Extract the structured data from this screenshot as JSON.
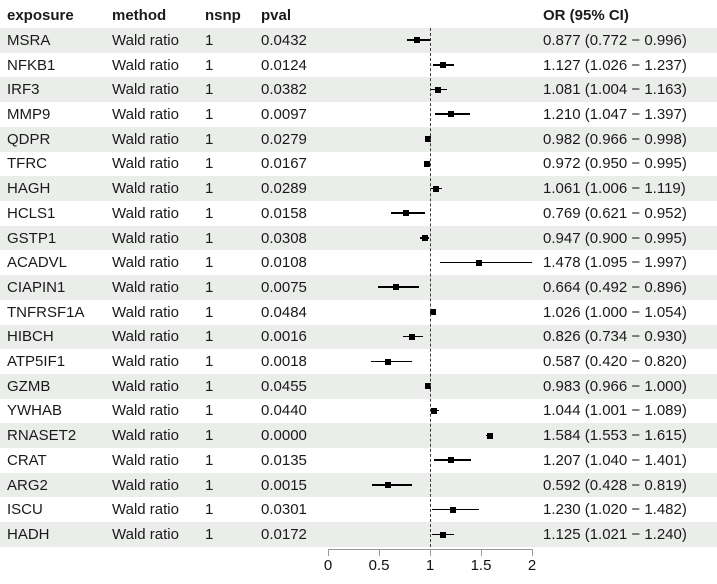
{
  "columns": {
    "exposure": "exposure",
    "method": "method",
    "nsnp": "nsnp",
    "pval": "pval",
    "or_ci": "OR (95% CI)"
  },
  "colors": {
    "stripe": "#ebedeb",
    "text": "#1a1a1a",
    "marker": "#000000",
    "axis": "#9a9a9a",
    "reference_line": "#3c3c3c"
  },
  "chart_data": {
    "type": "scatter",
    "subtype": "forest-plot",
    "title": "",
    "xlabel": "",
    "x_range": [
      0,
      2
    ],
    "x_ticks": [
      0,
      0.5,
      1,
      1.5,
      2
    ],
    "reference_line_x": 1,
    "grid": false,
    "rows": [
      {
        "exposure": "MSRA",
        "method": "Wald ratio",
        "nsnp": "1",
        "pval": "0.0432",
        "or": 0.877,
        "ci_low": 0.772,
        "ci_high": 0.996,
        "or_label": "0.877 (0.772 − 0.996)"
      },
      {
        "exposure": "NFKB1",
        "method": "Wald ratio",
        "nsnp": "1",
        "pval": "0.0124",
        "or": 1.127,
        "ci_low": 1.026,
        "ci_high": 1.237,
        "or_label": "1.127 (1.026 − 1.237)"
      },
      {
        "exposure": "IRF3",
        "method": "Wald ratio",
        "nsnp": "1",
        "pval": "0.0382",
        "or": 1.081,
        "ci_low": 1.004,
        "ci_high": 1.163,
        "or_label": "1.081 (1.004 − 1.163)"
      },
      {
        "exposure": "MMP9",
        "method": "Wald ratio",
        "nsnp": "1",
        "pval": "0.0097",
        "or": 1.21,
        "ci_low": 1.047,
        "ci_high": 1.397,
        "or_label": "1.210 (1.047 − 1.397)"
      },
      {
        "exposure": "QDPR",
        "method": "Wald ratio",
        "nsnp": "1",
        "pval": "0.0279",
        "or": 0.982,
        "ci_low": 0.966,
        "ci_high": 0.998,
        "or_label": "0.982 (0.966 − 0.998)"
      },
      {
        "exposure": "TFRC",
        "method": "Wald ratio",
        "nsnp": "1",
        "pval": "0.0167",
        "or": 0.972,
        "ci_low": 0.95,
        "ci_high": 0.995,
        "or_label": "0.972 (0.950 − 0.995)"
      },
      {
        "exposure": "HAGH",
        "method": "Wald ratio",
        "nsnp": "1",
        "pval": "0.0289",
        "or": 1.061,
        "ci_low": 1.006,
        "ci_high": 1.119,
        "or_label": "1.061 (1.006 − 1.119)"
      },
      {
        "exposure": "HCLS1",
        "method": "Wald ratio",
        "nsnp": "1",
        "pval": "0.0158",
        "or": 0.769,
        "ci_low": 0.621,
        "ci_high": 0.952,
        "or_label": "0.769 (0.621 − 0.952)"
      },
      {
        "exposure": "GSTP1",
        "method": "Wald ratio",
        "nsnp": "1",
        "pval": "0.0308",
        "or": 0.947,
        "ci_low": 0.9,
        "ci_high": 0.995,
        "or_label": "0.947 (0.900 − 0.995)"
      },
      {
        "exposure": "ACADVL",
        "method": "Wald ratio",
        "nsnp": "1",
        "pval": "0.0108",
        "or": 1.478,
        "ci_low": 1.095,
        "ci_high": 1.997,
        "or_label": "1.478 (1.095 − 1.997)"
      },
      {
        "exposure": "CIAPIN1",
        "method": "Wald ratio",
        "nsnp": "1",
        "pval": "0.0075",
        "or": 0.664,
        "ci_low": 0.492,
        "ci_high": 0.896,
        "or_label": "0.664 (0.492 − 0.896)"
      },
      {
        "exposure": "TNFRSF1A",
        "method": "Wald ratio",
        "nsnp": "1",
        "pval": "0.0484",
        "or": 1.026,
        "ci_low": 1.0,
        "ci_high": 1.054,
        "or_label": "1.026 (1.000 − 1.054)"
      },
      {
        "exposure": "HIBCH",
        "method": "Wald ratio",
        "nsnp": "1",
        "pval": "0.0016",
        "or": 0.826,
        "ci_low": 0.734,
        "ci_high": 0.93,
        "or_label": "0.826 (0.734 − 0.930)"
      },
      {
        "exposure": "ATP5IF1",
        "method": "Wald ratio",
        "nsnp": "1",
        "pval": "0.0018",
        "or": 0.587,
        "ci_low": 0.42,
        "ci_high": 0.82,
        "or_label": "0.587 (0.420 − 0.820)"
      },
      {
        "exposure": "GZMB",
        "method": "Wald ratio",
        "nsnp": "1",
        "pval": "0.0455",
        "or": 0.983,
        "ci_low": 0.966,
        "ci_high": 1.0,
        "or_label": "0.983 (0.966 − 1.000)"
      },
      {
        "exposure": "YWHAB",
        "method": "Wald ratio",
        "nsnp": "1",
        "pval": "0.0440",
        "or": 1.044,
        "ci_low": 1.001,
        "ci_high": 1.089,
        "or_label": "1.044 (1.001 − 1.089)"
      },
      {
        "exposure": "RNASET2",
        "method": "Wald ratio",
        "nsnp": "1",
        "pval": "0.0000",
        "or": 1.584,
        "ci_low": 1.553,
        "ci_high": 1.615,
        "or_label": "1.584 (1.553 − 1.615)"
      },
      {
        "exposure": "CRAT",
        "method": "Wald ratio",
        "nsnp": "1",
        "pval": "0.0135",
        "or": 1.207,
        "ci_low": 1.04,
        "ci_high": 1.401,
        "or_label": "1.207 (1.040 − 1.401)"
      },
      {
        "exposure": "ARG2",
        "method": "Wald ratio",
        "nsnp": "1",
        "pval": "0.0015",
        "or": 0.592,
        "ci_low": 0.428,
        "ci_high": 0.819,
        "or_label": "0.592 (0.428 − 0.819)"
      },
      {
        "exposure": "ISCU",
        "method": "Wald ratio",
        "nsnp": "1",
        "pval": "0.0301",
        "or": 1.23,
        "ci_low": 1.02,
        "ci_high": 1.482,
        "or_label": "1.230 (1.020 − 1.482)"
      },
      {
        "exposure": "HADH",
        "method": "Wald ratio",
        "nsnp": "1",
        "pval": "0.0172",
        "or": 1.125,
        "ci_low": 1.021,
        "ci_high": 1.24,
        "or_label": "1.125 (1.021 − 1.240)"
      }
    ]
  }
}
